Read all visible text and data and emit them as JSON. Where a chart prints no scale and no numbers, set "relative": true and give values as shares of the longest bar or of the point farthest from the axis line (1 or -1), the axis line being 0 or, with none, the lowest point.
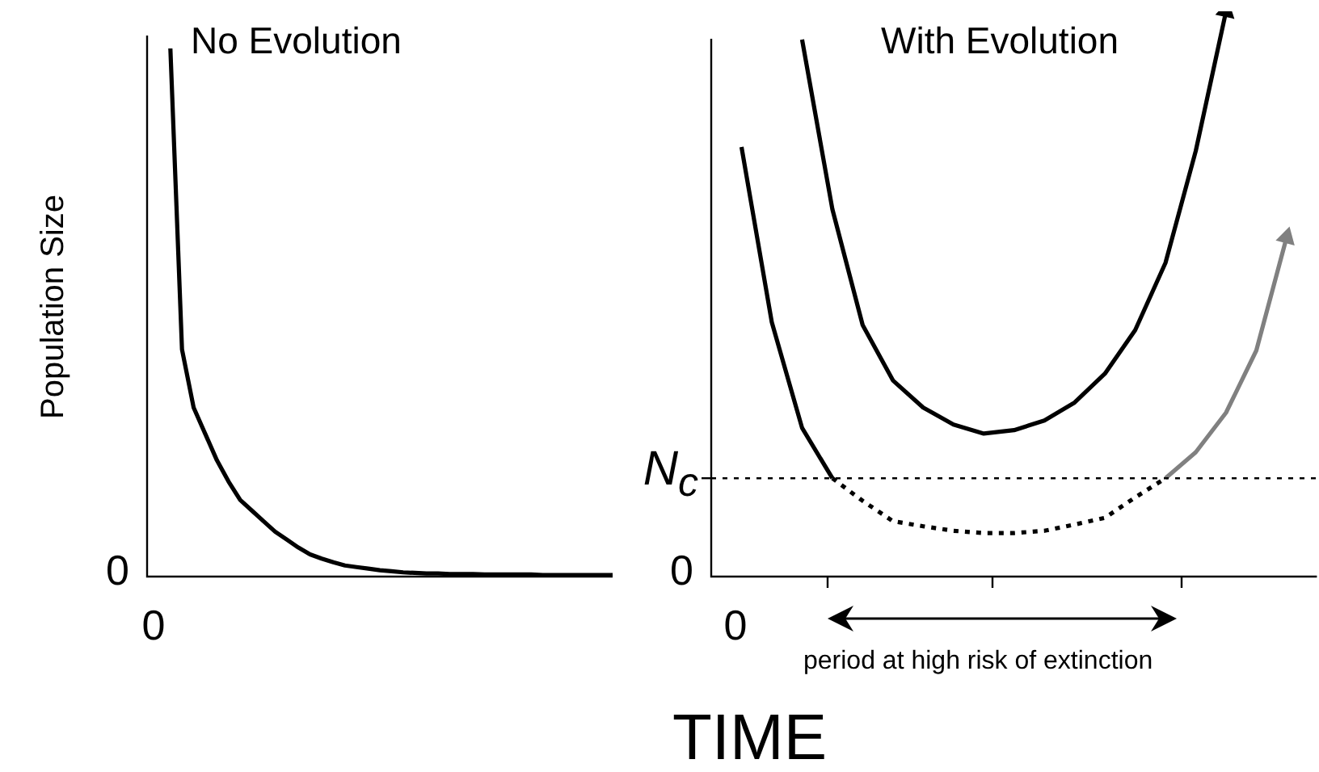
{
  "chart_data": [
    {
      "type": "line",
      "title": "No Evolution",
      "xlabel": "TIME",
      "ylabel": "Population Size",
      "relative": true,
      "annotations": [
        "0",
        "0"
      ],
      "categories": [
        null,
        null,
        null,
        null,
        null,
        null,
        null,
        null,
        null,
        null,
        null,
        null,
        null,
        null,
        null,
        null,
        null,
        null,
        null,
        null,
        null,
        null,
        null,
        null,
        null,
        null,
        null,
        null,
        null,
        null,
        null,
        null,
        null,
        null,
        null,
        null,
        null,
        null,
        null,
        null,
        null
      ],
      "series": [
        {
          "color": "#000000",
          "line_style": "solid",
          "values": [
            null,
            null,
            1,
            0.43,
            0.32,
            0.27,
            0.22,
            0.18,
            0.145,
            0.125,
            0.105,
            0.085,
            0.07,
            0.055,
            0.042,
            0.034,
            0.027,
            0.021,
            0.018,
            0.015,
            0.012,
            0.01,
            0.008,
            0.007,
            0.006,
            0.006,
            0.005,
            0.005,
            0.005,
            0.004,
            0.004,
            0.004,
            0.004,
            0.004,
            0.003,
            0.003,
            0.003,
            0.003,
            0.003,
            0.003,
            0.003
          ]
        }
      ]
    },
    {
      "type": "line",
      "title": "With Evolution",
      "relative": true,
      "annotations": [
        "0",
        "0",
        "period at high risk of extinction"
      ],
      "categories": [
        null,
        null,
        null,
        null,
        null,
        null,
        null,
        null,
        null,
        null,
        null,
        null,
        null,
        null,
        null,
        null,
        null,
        null,
        null,
        null,
        null
      ],
      "ref_lines": [
        {
          "axis": "y",
          "value": 0.174,
          "label": "N$_{c}$",
          "line_style": "dotted"
        }
      ],
      "series": [
        {
          "color": "#000000",
          "line_style": "solid",
          "values": [
            null,
            null,
            null,
            0.95,
            0.65,
            0.445,
            0.347,
            0.299,
            0.269,
            0.253,
            0.259,
            0.276,
            0.308,
            0.359,
            0.436,
            0.555,
            0.753,
            1,
            null,
            null,
            null
          ]
        },
        {
          "color": "#000000",
          "line_style": "solid",
          "values": [
            null,
            0.76,
            0.45,
            0.263,
            0.174,
            null,
            null,
            null,
            null,
            null,
            null,
            null,
            null,
            null,
            null,
            null,
            null,
            null,
            null,
            null,
            null
          ]
        },
        {
          "color": "#000000",
          "line_style": "dotted",
          "values": [
            null,
            null,
            null,
            null,
            0.174,
            0.134,
            0.098,
            0.089,
            0.081,
            0.077,
            0.077,
            0.081,
            0.092,
            0.104,
            0.14,
            0.174,
            null,
            null,
            null,
            null,
            null
          ]
        },
        {
          "color": "#808080",
          "line_style": "solid",
          "values": [
            null,
            null,
            null,
            null,
            null,
            null,
            null,
            null,
            null,
            null,
            null,
            null,
            null,
            null,
            null,
            0.174,
            0.22,
            0.29,
            0.4,
            0.6,
            null
          ]
        }
      ]
    }
  ]
}
